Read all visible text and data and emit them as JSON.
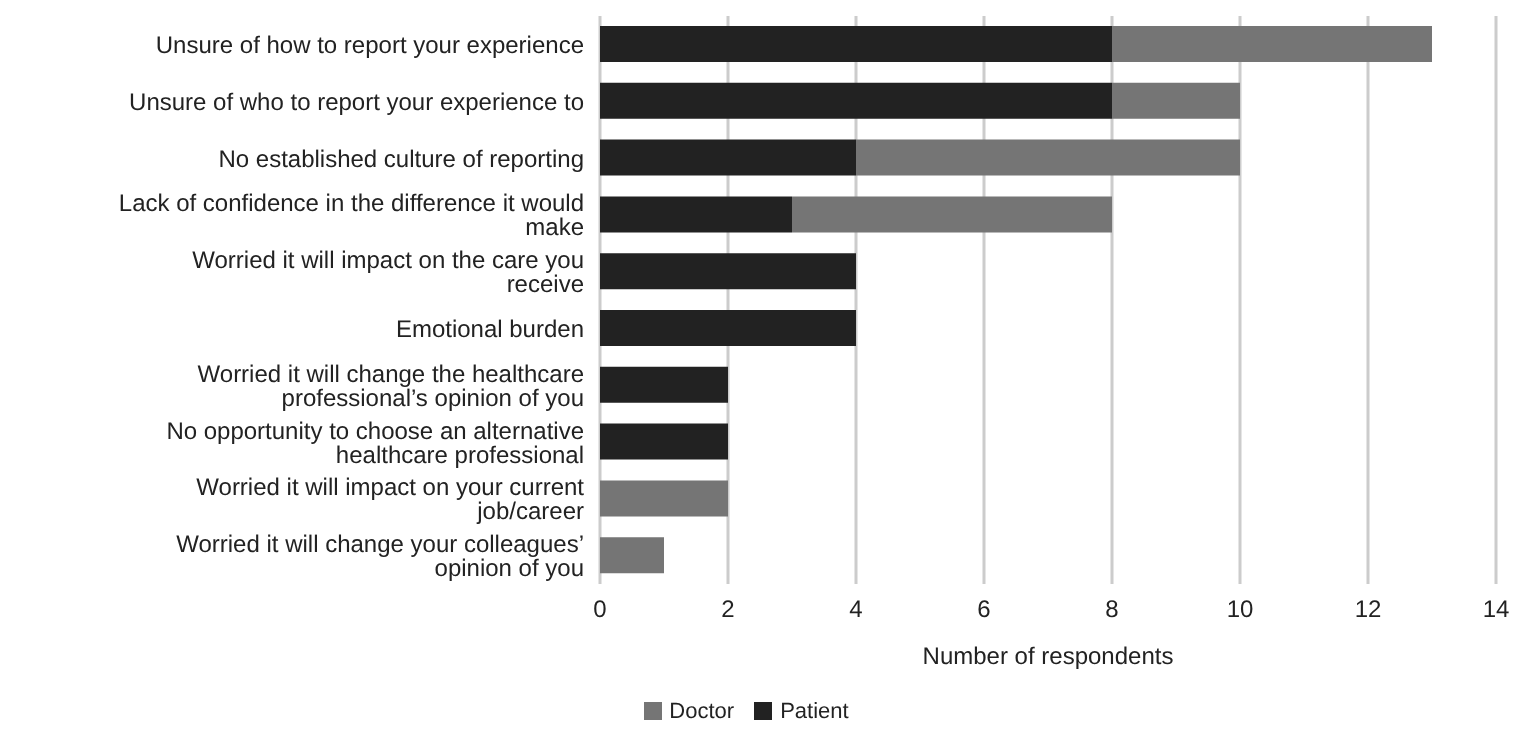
{
  "chart_data": {
    "type": "bar",
    "orientation": "horizontal",
    "stacked": true,
    "xlabel": "Number of respondents",
    "categories": [
      "Unsure of how to report your experience",
      "Unsure of who to report your experience to",
      "No established culture of reporting",
      "Lack of confidence in the difference it would make",
      "Worried it will impact on the care you receive",
      "Emotional burden",
      "Worried it will change the healthcare professional’s opinion of you",
      "No opportunity to choose an alternative healthcare professional",
      "Worried it will impact on your current job/career",
      "Worried it will change your colleagues’ opinion of you"
    ],
    "series": [
      {
        "name": "Patient",
        "color": "#222222",
        "values": [
          8,
          8,
          4,
          3,
          4,
          4,
          2,
          2,
          0,
          0
        ]
      },
      {
        "name": "Doctor",
        "color": "#757575",
        "values": [
          5,
          2,
          6,
          5,
          0,
          0,
          0,
          0,
          2,
          1
        ]
      }
    ],
    "xlim": [
      0,
      14
    ],
    "xticks": [
      0,
      2,
      4,
      6,
      8,
      10,
      12,
      14
    ],
    "grid": "x",
    "legend": "bottom"
  }
}
